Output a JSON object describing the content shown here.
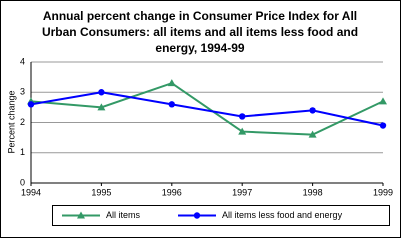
{
  "chart_data": {
    "type": "line",
    "title": "Annual percent change in Consumer Price Index for All Urban Consumers:  all items and all items less food and energy, 1994-99",
    "ylabel": "Percent change",
    "x": [
      1994,
      1995,
      1996,
      1997,
      1998,
      1999
    ],
    "xlim": [
      1994,
      1999
    ],
    "xticks": [
      1994,
      1995,
      1996,
      1997,
      1998,
      1999
    ],
    "ylim": [
      0,
      4
    ],
    "yticks": [
      0,
      1,
      2,
      3,
      4
    ],
    "grid": true,
    "legend": "bottom",
    "series": [
      {
        "name": "All items",
        "color": "#339966",
        "marker": "triangle",
        "values": [
          2.7,
          2.5,
          3.3,
          1.7,
          1.6,
          2.7
        ]
      },
      {
        "name": "All items less food and energy",
        "color": "#0000ff",
        "marker": "circle",
        "values": [
          2.6,
          3.0,
          2.6,
          2.2,
          2.4,
          1.9
        ]
      }
    ]
  }
}
